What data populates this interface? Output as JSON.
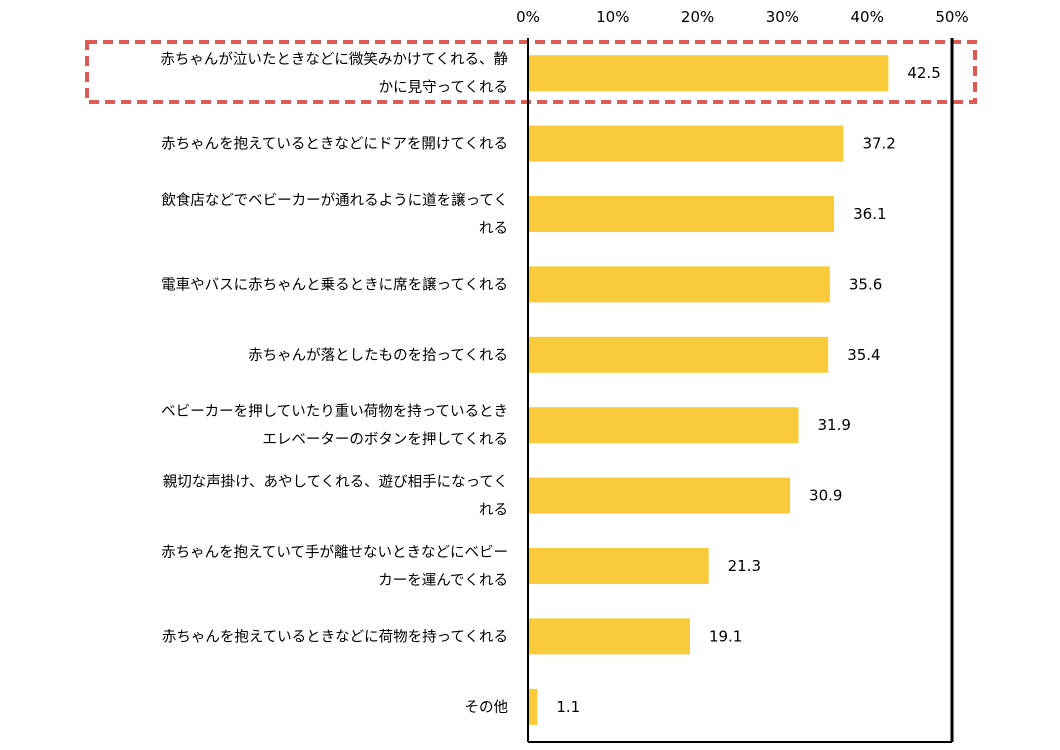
{
  "chart_data": {
    "type": "bar",
    "orientation": "horizontal",
    "categories": [
      [
        "赤ちゃんが泣いたときなどに微笑みかけてくれる、静",
        "かに見守ってくれる"
      ],
      [
        "赤ちゃんを抱えているときなどにドアを開けてくれる"
      ],
      [
        "飲食店などでベビーカーが通れるように道を譲ってく",
        "れる"
      ],
      [
        "電車やバスに赤ちゃんと乗るときに席を譲ってくれる"
      ],
      [
        "赤ちゃんが落としたものを拾ってくれる"
      ],
      [
        "ベビーカーを押していたり重い荷物を持っているとき",
        "エレベーターのボタンを押してくれる"
      ],
      [
        "親切な声掛け、あやしてくれる、遊び相手になってく",
        "れる"
      ],
      [
        "赤ちゃんを抱えていて手が離せないときなどにベビー",
        "カーを運んでくれる"
      ],
      [
        "赤ちゃんを抱えているときなどに荷物を持ってくれる"
      ],
      [
        "その他"
      ]
    ],
    "values": [
      42.5,
      37.2,
      36.1,
      35.6,
      35.4,
      31.9,
      30.9,
      21.3,
      19.1,
      1.1
    ],
    "value_labels": [
      "42.5",
      "37.2",
      "36.1",
      "35.6",
      "35.4",
      "31.9",
      "30.9",
      "21.3",
      "19.1",
      "1.1"
    ],
    "xlim": [
      0,
      50
    ],
    "xticks": [
      0,
      10,
      20,
      30,
      40,
      50
    ],
    "xtick_labels": [
      "0%",
      "10%",
      "20%",
      "30%",
      "40%",
      "50%"
    ],
    "axis_position": "top",
    "grid": false,
    "highlight_index": 0,
    "colors": {
      "bar": "#F9CB3A",
      "highlight_border": "#E05A55",
      "axis": "#000000"
    }
  }
}
